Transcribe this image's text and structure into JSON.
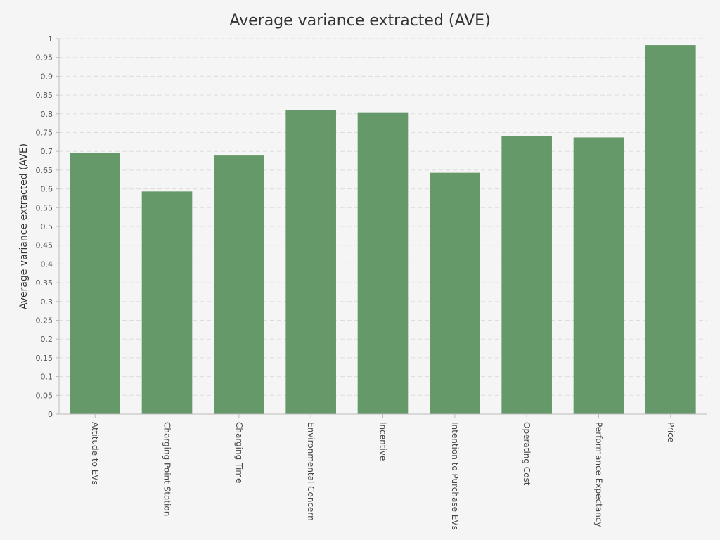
{
  "chart_data": {
    "type": "bar",
    "title": "Average variance extracted (AVE)",
    "xlabel": "",
    "ylabel": "Average variance extracted (AVE)",
    "ylim": [
      0,
      1
    ],
    "ytick_step": 0.05,
    "yticks": [
      "0",
      "0.05",
      "0.1",
      "0.15",
      "0.2",
      "0.25",
      "0.3",
      "0.35",
      "0.4",
      "0.45",
      "0.5",
      "0.55",
      "0.6",
      "0.65",
      "0.7",
      "0.75",
      "0.8",
      "0.85",
      "0.9",
      "0.95",
      "1"
    ],
    "grid": true,
    "bar_color": "#66996a",
    "categories": [
      "Attitude to EVs",
      "Charging Point Station",
      "Charging Time",
      "Environmental Concern",
      "Incentive",
      "Intention to Purchase EVs",
      "Operating Cost",
      "Performance Expectancy",
      "Price"
    ],
    "values": [
      0.695,
      0.593,
      0.689,
      0.809,
      0.804,
      0.643,
      0.741,
      0.737,
      0.983
    ]
  }
}
